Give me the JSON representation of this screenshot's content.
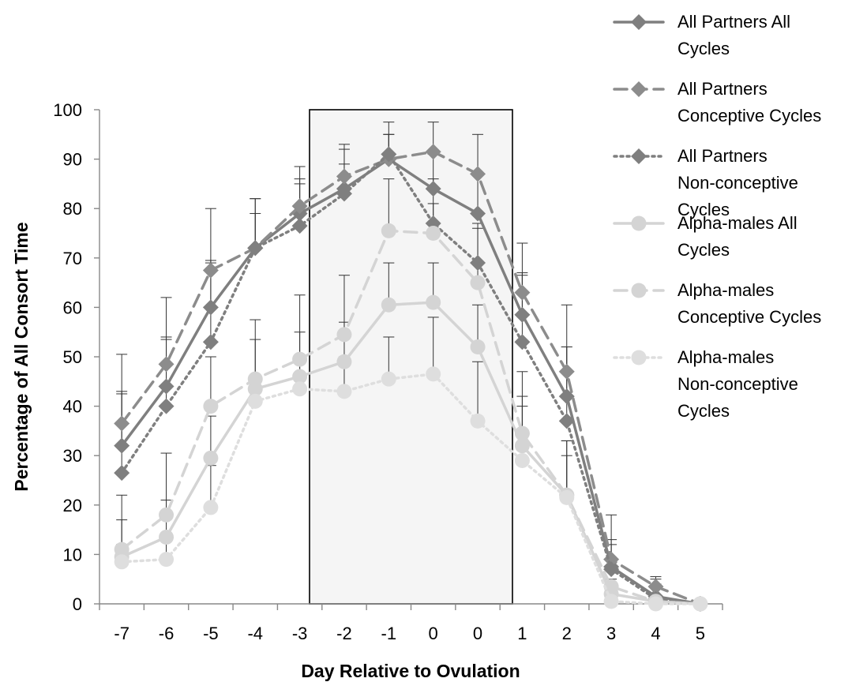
{
  "chart_data": {
    "type": "line",
    "title": "",
    "xlabel": "Day Relative to Ovulation",
    "ylabel": "Percentage of All Consort Time",
    "ylim": [
      0,
      100
    ],
    "yticks": [
      "0",
      "10",
      "20",
      "30",
      "40",
      "50",
      "60",
      "70",
      "80",
      "90",
      "100"
    ],
    "categories": [
      "-7",
      "-6",
      "-5",
      "-4",
      "-3",
      "-2",
      "-1",
      "0",
      "0",
      "1",
      "2",
      "3",
      "4",
      "5"
    ],
    "shaded_window": {
      "from_category_index": 5,
      "to_category_index": 8
    },
    "grid": false,
    "legend_position": "right",
    "series": [
      {
        "name": "All Partners All Cycles",
        "color": "#7f7f7f",
        "marker": "diamond",
        "dash": "solid",
        "values": [
          32,
          44,
          60,
          72,
          79,
          84,
          90,
          84,
          79,
          58.5,
          42,
          7.5,
          1.5,
          0
        ],
        "error_high": [
          43,
          54,
          69,
          79,
          85,
          92,
          95,
          91,
          87,
          67,
          52,
          13,
          5,
          0
        ]
      },
      {
        "name": "All Partners Conceptive Cycles",
        "color": "#8c8c8c",
        "marker": "diamond",
        "dash": "dashed",
        "values": [
          36.5,
          48.5,
          67.5,
          72,
          80.5,
          86.5,
          90,
          91.5,
          87,
          63,
          47,
          9,
          3.5,
          0
        ],
        "error_high": [
          50.5,
          62,
          80,
          82,
          88.5,
          93,
          97.5,
          97.5,
          95,
          73,
          60.5,
          18,
          5.5,
          0
        ]
      },
      {
        "name": "All Partners Non-conceptive Cycles",
        "color": "#7f7f7f",
        "marker": "diamond",
        "dash": "dotted",
        "values": [
          26.5,
          40,
          53,
          72,
          76.5,
          83,
          91,
          77,
          69,
          53,
          37,
          7,
          1,
          0
        ],
        "error_high": [
          42.5,
          53.5,
          69.5,
          82,
          86,
          89,
          95,
          86,
          76,
          66.5,
          52,
          12,
          4,
          0
        ]
      },
      {
        "name": "Alpha-males All Cycles",
        "color": "#d4d4d4",
        "marker": "circle",
        "dash": "solid",
        "values": [
          9.5,
          13.5,
          29.5,
          43.5,
          46,
          49,
          60.5,
          61,
          52,
          32,
          22,
          2,
          0.5,
          0
        ],
        "error_high": [
          17,
          21,
          38,
          53.5,
          55,
          57,
          69,
          69,
          60.5,
          42,
          33,
          3,
          0.5,
          0
        ]
      },
      {
        "name": "Alpha-males Conceptive Cycles",
        "color": "#d4d4d4",
        "marker": "circle",
        "dash": "dashed",
        "values": [
          11,
          18,
          40,
          45.5,
          49.5,
          54.5,
          75.5,
          75,
          65,
          34.5,
          22,
          3.5,
          0.5,
          0
        ],
        "error_high": [
          22,
          30.5,
          50,
          57.5,
          62.5,
          66.5,
          86,
          81,
          77,
          47,
          33,
          5,
          0.5,
          0
        ]
      },
      {
        "name": "Alpha-males Non-conceptive Cycles",
        "color": "#dedede",
        "marker": "circle",
        "dash": "dotted",
        "values": [
          8.5,
          9,
          19.5,
          41,
          43.5,
          43,
          45.5,
          46.5,
          37,
          29,
          21.5,
          0.5,
          0,
          0
        ],
        "error_high": [
          12,
          13,
          28,
          46,
          50,
          50,
          54,
          58,
          49,
          40,
          30,
          2,
          0.5,
          0
        ]
      }
    ]
  }
}
